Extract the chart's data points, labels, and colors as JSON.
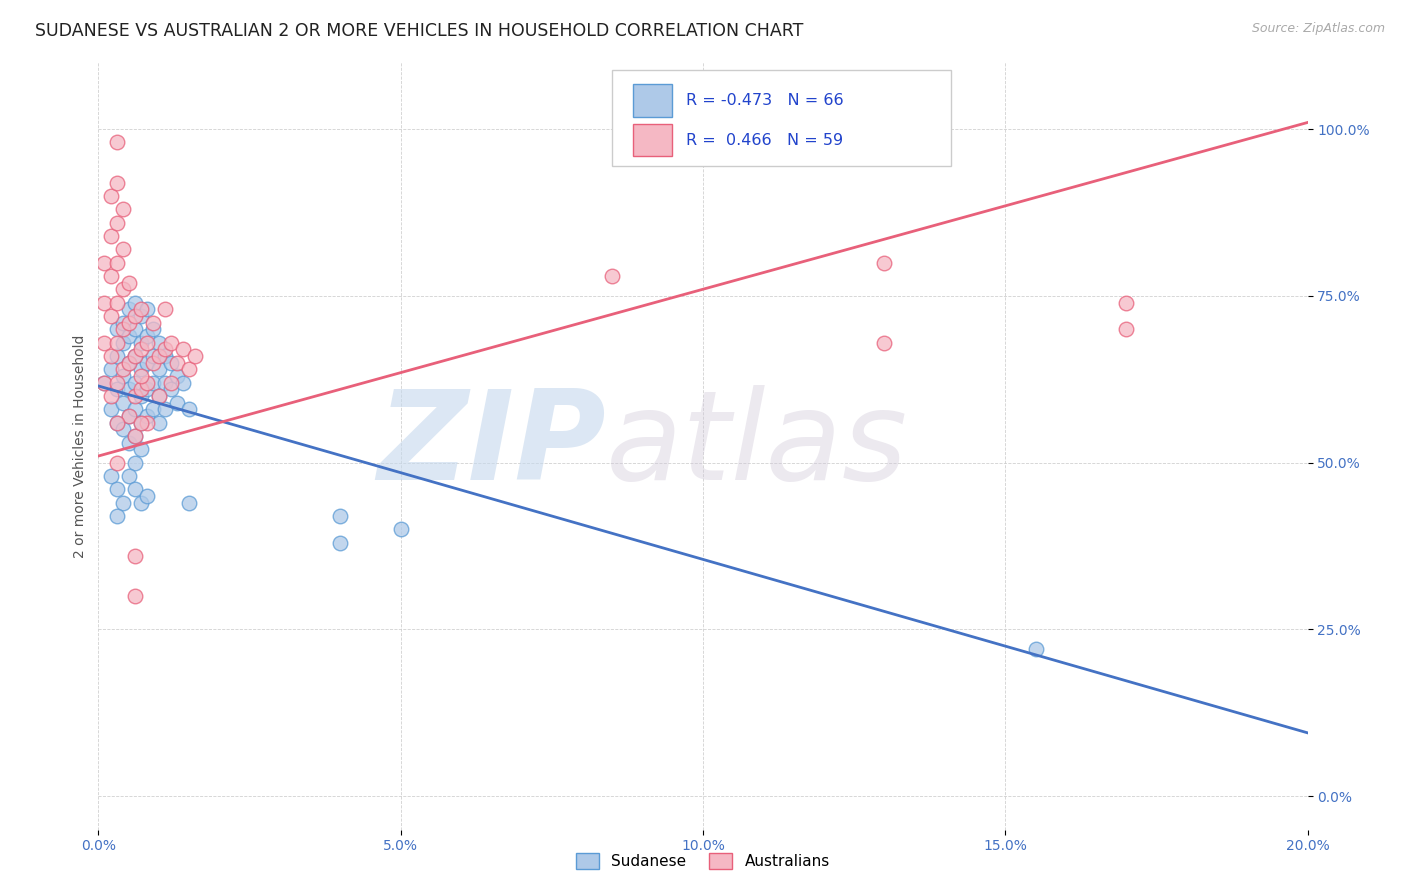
{
  "title": "SUDANESE VS AUSTRALIAN 2 OR MORE VEHICLES IN HOUSEHOLD CORRELATION CHART",
  "source": "Source: ZipAtlas.com",
  "ylabel": "2 or more Vehicles in Household",
  "xlim": [
    0.0,
    0.2
  ],
  "ylim": [
    -0.05,
    1.1
  ],
  "xticks": [
    0.0,
    0.05,
    0.1,
    0.15,
    0.2
  ],
  "yticks": [
    0.0,
    0.25,
    0.5,
    0.75,
    1.0
  ],
  "xtick_labels": [
    "0.0%",
    "5.0%",
    "10.0%",
    "15.0%",
    "20.0%"
  ],
  "ytick_labels": [
    "0.0%",
    "25.0%",
    "50.0%",
    "75.0%",
    "100.0%"
  ],
  "sudanese_fill": "#aec9e8",
  "sudanese_edge": "#5b9bd5",
  "australian_fill": "#f5b8c4",
  "australian_edge": "#e8607a",
  "sudanese_line": "#4472c4",
  "australian_line": "#e8607a",
  "sudanese_R": -0.473,
  "sudanese_N": 66,
  "australian_R": 0.466,
  "australian_N": 59,
  "legend_label_sudanese": "Sudanese",
  "legend_label_australians": "Australians",
  "watermark_zip": "ZIP",
  "watermark_atlas": "atlas",
  "title_fontsize": 12.5,
  "source_fontsize": 9,
  "tick_fontsize": 10,
  "ylabel_fontsize": 10,
  "tick_color": "#4472c4",
  "sudanese_line_endpoints": [
    [
      0.0,
      0.615
    ],
    [
      0.2,
      0.095
    ]
  ],
  "australian_line_endpoints": [
    [
      0.0,
      0.51
    ],
    [
      0.2,
      1.01
    ]
  ],
  "sudanese_points": [
    [
      0.001,
      0.62
    ],
    [
      0.002,
      0.64
    ],
    [
      0.002,
      0.58
    ],
    [
      0.003,
      0.7
    ],
    [
      0.003,
      0.66
    ],
    [
      0.003,
      0.61
    ],
    [
      0.003,
      0.56
    ],
    [
      0.004,
      0.71
    ],
    [
      0.004,
      0.68
    ],
    [
      0.004,
      0.63
    ],
    [
      0.004,
      0.59
    ],
    [
      0.004,
      0.55
    ],
    [
      0.005,
      0.73
    ],
    [
      0.005,
      0.69
    ],
    [
      0.005,
      0.65
    ],
    [
      0.005,
      0.61
    ],
    [
      0.005,
      0.57
    ],
    [
      0.005,
      0.53
    ],
    [
      0.006,
      0.74
    ],
    [
      0.006,
      0.7
    ],
    [
      0.006,
      0.66
    ],
    [
      0.006,
      0.62
    ],
    [
      0.006,
      0.58
    ],
    [
      0.006,
      0.54
    ],
    [
      0.006,
      0.5
    ],
    [
      0.007,
      0.72
    ],
    [
      0.007,
      0.68
    ],
    [
      0.007,
      0.64
    ],
    [
      0.007,
      0.6
    ],
    [
      0.007,
      0.56
    ],
    [
      0.007,
      0.52
    ],
    [
      0.008,
      0.73
    ],
    [
      0.008,
      0.69
    ],
    [
      0.008,
      0.65
    ],
    [
      0.008,
      0.61
    ],
    [
      0.008,
      0.57
    ],
    [
      0.009,
      0.7
    ],
    [
      0.009,
      0.66
    ],
    [
      0.009,
      0.62
    ],
    [
      0.009,
      0.58
    ],
    [
      0.01,
      0.68
    ],
    [
      0.01,
      0.64
    ],
    [
      0.01,
      0.6
    ],
    [
      0.01,
      0.56
    ],
    [
      0.011,
      0.66
    ],
    [
      0.011,
      0.62
    ],
    [
      0.011,
      0.58
    ],
    [
      0.012,
      0.65
    ],
    [
      0.012,
      0.61
    ],
    [
      0.013,
      0.63
    ],
    [
      0.013,
      0.59
    ],
    [
      0.014,
      0.62
    ],
    [
      0.015,
      0.58
    ],
    [
      0.002,
      0.48
    ],
    [
      0.003,
      0.46
    ],
    [
      0.004,
      0.44
    ],
    [
      0.005,
      0.48
    ],
    [
      0.006,
      0.46
    ],
    [
      0.007,
      0.44
    ],
    [
      0.008,
      0.45
    ],
    [
      0.003,
      0.42
    ],
    [
      0.015,
      0.44
    ],
    [
      0.04,
      0.42
    ],
    [
      0.04,
      0.38
    ],
    [
      0.05,
      0.4
    ],
    [
      0.155,
      0.22
    ]
  ],
  "australian_points": [
    [
      0.001,
      0.62
    ],
    [
      0.001,
      0.68
    ],
    [
      0.001,
      0.74
    ],
    [
      0.001,
      0.8
    ],
    [
      0.002,
      0.6
    ],
    [
      0.002,
      0.66
    ],
    [
      0.002,
      0.72
    ],
    [
      0.002,
      0.78
    ],
    [
      0.002,
      0.84
    ],
    [
      0.002,
      0.9
    ],
    [
      0.003,
      0.62
    ],
    [
      0.003,
      0.68
    ],
    [
      0.003,
      0.74
    ],
    [
      0.003,
      0.8
    ],
    [
      0.003,
      0.86
    ],
    [
      0.003,
      0.92
    ],
    [
      0.003,
      0.98
    ],
    [
      0.004,
      0.64
    ],
    [
      0.004,
      0.7
    ],
    [
      0.004,
      0.76
    ],
    [
      0.004,
      0.82
    ],
    [
      0.004,
      0.88
    ],
    [
      0.005,
      0.65
    ],
    [
      0.005,
      0.71
    ],
    [
      0.005,
      0.77
    ],
    [
      0.005,
      0.57
    ],
    [
      0.006,
      0.66
    ],
    [
      0.006,
      0.72
    ],
    [
      0.006,
      0.6
    ],
    [
      0.006,
      0.54
    ],
    [
      0.007,
      0.67
    ],
    [
      0.007,
      0.73
    ],
    [
      0.007,
      0.61
    ],
    [
      0.008,
      0.68
    ],
    [
      0.008,
      0.62
    ],
    [
      0.008,
      0.56
    ],
    [
      0.009,
      0.65
    ],
    [
      0.009,
      0.71
    ],
    [
      0.01,
      0.66
    ],
    [
      0.01,
      0.6
    ],
    [
      0.011,
      0.67
    ],
    [
      0.011,
      0.73
    ],
    [
      0.012,
      0.68
    ],
    [
      0.012,
      0.62
    ],
    [
      0.013,
      0.65
    ],
    [
      0.014,
      0.67
    ],
    [
      0.015,
      0.64
    ],
    [
      0.016,
      0.66
    ],
    [
      0.003,
      0.56
    ],
    [
      0.003,
      0.5
    ],
    [
      0.006,
      0.3
    ],
    [
      0.006,
      0.36
    ],
    [
      0.085,
      0.78
    ],
    [
      0.13,
      0.8
    ],
    [
      0.13,
      0.68
    ],
    [
      0.17,
      0.7
    ],
    [
      0.17,
      0.74
    ],
    [
      0.007,
      0.56
    ],
    [
      0.007,
      0.63
    ]
  ]
}
